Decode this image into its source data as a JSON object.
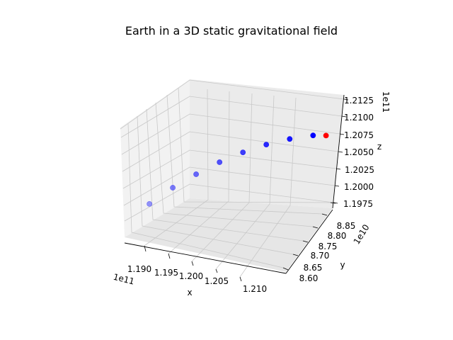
{
  "chart_data": {
    "type": "scatter3d",
    "title": "Earth in a 3D static gravitational field",
    "xlabel": "x",
    "ylabel": "y",
    "zlabel": "z",
    "x_offset_label": "1e11",
    "y_offset_label": "1e10",
    "z_offset_label": "1e11",
    "x_ticks": [
      "1.190",
      "1.195",
      "1.200",
      "1.205",
      "1.210"
    ],
    "y_ticks": [
      "8.60",
      "8.65",
      "8.70",
      "8.75",
      "8.80",
      "8.85"
    ],
    "z_ticks": [
      "1.1975",
      "1.2000",
      "1.2025",
      "1.2050",
      "1.2075",
      "1.2100",
      "1.2125"
    ],
    "grid": true,
    "series": [
      {
        "color": "#0000ff",
        "points": [
          {
            "x": 118850000000.0,
            "y": 86050000000.0,
            "z": 120050000000.0
          },
          {
            "x": 119150000000.0,
            "y": 86400000000.0,
            "z": 120220000000.0
          },
          {
            "x": 119450000000.0,
            "y": 86750000000.0,
            "z": 120350000000.0
          },
          {
            "x": 119750000000.0,
            "y": 87100000000.0,
            "z": 120460000000.0
          },
          {
            "x": 120050000000.0,
            "y": 87450000000.0,
            "z": 120540000000.0
          },
          {
            "x": 120350000000.0,
            "y": 87800000000.0,
            "z": 120590000000.0
          },
          {
            "x": 120650000000.0,
            "y": 88150000000.0,
            "z": 120610000000.0
          },
          {
            "x": 120950000000.0,
            "y": 88500000000.0,
            "z": 120600000000.0
          }
        ]
      },
      {
        "color": "#ff0000",
        "points": [
          {
            "x": 121120000000.0,
            "y": 88680000000.0,
            "z": 120570000000.0
          }
        ]
      }
    ]
  }
}
